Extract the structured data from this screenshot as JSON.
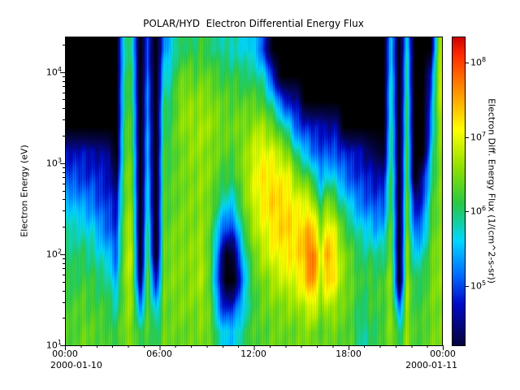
{
  "chart_data": {
    "type": "heatmap",
    "title": "POLAR/HYD  Electron Differential Energy Flux",
    "ylabel": "Electron Energy (eV)",
    "colorbar_label": "Electron Diff. Energy Flux (1/(cm^2-s-sr))",
    "x_tick_labels": [
      "00:00",
      "06:00",
      "12:00",
      "18:00",
      "00:00"
    ],
    "x_dates": [
      "2000-01-10",
      "2000-01-11"
    ],
    "tick_base": "10",
    "y_tick_exponents": [
      1,
      2,
      3,
      4
    ],
    "colorbar_tick_exponents": [
      5,
      6,
      7,
      8
    ],
    "x_hours_range": [
      0,
      24
    ],
    "y_log_energy_range": [
      1.0,
      4.39
    ],
    "colorbar_log_range": [
      4.2,
      8.35
    ],
    "value_units": "log10 differential energy flux",
    "colormap_stops": [
      [
        3.8,
        0,
        0,
        0
      ],
      [
        4.3,
        5,
        5,
        85
      ],
      [
        4.75,
        0,
        10,
        200
      ],
      [
        5.15,
        0,
        110,
        255
      ],
      [
        5.6,
        0,
        215,
        255
      ],
      [
        6.1,
        40,
        200,
        70
      ],
      [
        6.6,
        145,
        225,
        0
      ],
      [
        7.1,
        255,
        255,
        0
      ],
      [
        7.6,
        255,
        150,
        0
      ],
      [
        8.1,
        255,
        45,
        0
      ],
      [
        8.35,
        205,
        0,
        0
      ]
    ],
    "grid": {
      "cols": 48,
      "rows": 12,
      "col_bin_hours": 0.5,
      "row_order": "bottom_to_top",
      "values": [
        [
          6.3,
          6.2,
          6.1,
          6.0,
          5.8,
          5.5,
          5.0,
          4.7,
          3.8,
          3.8,
          3.8,
          3.8
        ],
        [
          6.3,
          6.3,
          6.1,
          6.0,
          5.8,
          5.4,
          5.0,
          4.7,
          3.8,
          3.8,
          3.8,
          3.8
        ],
        [
          6.4,
          6.3,
          6.2,
          6.0,
          5.7,
          5.3,
          4.9,
          4.7,
          3.8,
          3.8,
          3.8,
          3.8
        ],
        [
          6.3,
          6.2,
          6.1,
          5.9,
          5.6,
          5.2,
          4.9,
          4.6,
          3.8,
          3.8,
          3.8,
          3.8
        ],
        [
          6.3,
          6.2,
          6.0,
          5.7,
          5.3,
          5.0,
          4.8,
          4.6,
          3.8,
          3.8,
          3.8,
          3.8
        ],
        [
          6.2,
          6.1,
          5.9,
          5.5,
          5.1,
          4.9,
          4.7,
          4.5,
          3.8,
          3.8,
          3.8,
          3.8
        ],
        [
          6.1,
          5.8,
          5.4,
          5.1,
          4.9,
          4.7,
          4.2,
          3.8,
          3.8,
          3.8,
          3.8,
          3.8
        ],
        [
          6.5,
          6.5,
          6.6,
          6.6,
          6.5,
          6.4,
          6.4,
          6.3,
          6.2,
          6.1,
          6.0,
          5.9
        ],
        [
          6.5,
          6.6,
          6.7,
          6.8,
          6.7,
          6.5,
          6.4,
          6.3,
          6.2,
          6.1,
          6.0,
          5.9
        ],
        [
          6.0,
          5.2,
          4.2,
          3.8,
          3.8,
          3.8,
          3.8,
          3.8,
          3.8,
          3.8,
          3.8,
          3.8
        ],
        [
          6.3,
          6.4,
          6.4,
          6.3,
          6.0,
          5.8,
          5.6,
          5.5,
          5.4,
          5.3,
          5.2,
          5.0
        ],
        [
          6.0,
          5.4,
          4.6,
          3.8,
          3.8,
          3.8,
          3.8,
          3.8,
          3.8,
          3.8,
          3.8,
          3.8
        ],
        [
          6.4,
          6.4,
          6.4,
          6.3,
          6.3,
          6.2,
          6.2,
          6.1,
          6.0,
          5.9,
          5.6,
          5.2
        ],
        [
          6.4,
          6.4,
          6.5,
          6.5,
          6.4,
          6.3,
          6.3,
          6.2,
          6.2,
          6.0,
          5.9,
          5.6
        ],
        [
          6.4,
          6.5,
          6.5,
          6.5,
          6.5,
          6.4,
          6.4,
          6.4,
          6.5,
          6.5,
          6.3,
          6.0
        ],
        [
          6.4,
          6.5,
          6.5,
          6.5,
          6.5,
          6.5,
          6.5,
          6.5,
          6.6,
          6.6,
          6.4,
          6.1
        ],
        [
          6.4,
          6.5,
          6.6,
          6.6,
          6.5,
          6.5,
          6.5,
          6.6,
          6.6,
          6.5,
          6.3,
          6.0
        ],
        [
          6.5,
          6.6,
          6.7,
          6.7,
          6.6,
          6.6,
          6.6,
          6.6,
          6.7,
          6.6,
          6.4,
          6.2
        ],
        [
          6.4,
          6.3,
          6.2,
          6.2,
          6.3,
          6.4,
          6.5,
          6.5,
          6.6,
          6.5,
          6.3,
          6.0
        ],
        [
          5.8,
          5.2,
          4.9,
          5.0,
          5.5,
          6.0,
          6.3,
          6.4,
          6.5,
          6.4,
          6.2,
          5.9
        ],
        [
          5.5,
          4.7,
          3.8,
          3.9,
          4.9,
          5.6,
          6.1,
          6.3,
          6.4,
          6.3,
          6.1,
          5.8
        ],
        [
          5.6,
          4.9,
          3.9,
          4.2,
          5.0,
          5.7,
          6.1,
          6.3,
          6.4,
          6.3,
          6.1,
          5.8
        ],
        [
          5.9,
          5.5,
          5.2,
          5.5,
          6.0,
          6.3,
          6.5,
          6.5,
          6.5,
          6.3,
          6.0,
          5.7
        ],
        [
          6.2,
          6.0,
          6.0,
          6.2,
          6.5,
          6.7,
          6.8,
          6.7,
          6.5,
          6.3,
          6.0,
          5.6
        ],
        [
          6.3,
          6.3,
          6.4,
          6.6,
          6.8,
          7.0,
          7.1,
          7.0,
          6.7,
          6.3,
          5.9,
          5.4
        ],
        [
          6.3,
          6.4,
          6.5,
          6.8,
          7.0,
          7.2,
          7.2,
          7.0,
          6.6,
          6.1,
          5.5,
          4.7
        ],
        [
          6.4,
          6.5,
          6.7,
          7.0,
          7.2,
          7.3,
          7.2,
          6.9,
          6.4,
          5.6,
          4.7,
          3.8
        ],
        [
          6.4,
          6.5,
          6.8,
          7.1,
          7.3,
          7.3,
          7.1,
          6.7,
          6.0,
          5.0,
          3.8,
          3.8
        ],
        [
          6.4,
          6.6,
          6.9,
          7.2,
          7.3,
          7.2,
          7.0,
          6.5,
          5.6,
          4.7,
          3.8,
          3.8
        ],
        [
          6.4,
          6.6,
          7.0,
          7.2,
          7.2,
          7.0,
          6.5,
          5.8,
          5.0,
          4.6,
          3.8,
          3.8
        ],
        [
          6.5,
          6.8,
          7.3,
          7.5,
          7.4,
          7.0,
          6.4,
          5.5,
          4.9,
          3.8,
          3.8,
          3.8
        ],
        [
          6.5,
          7.0,
          7.7,
          7.9,
          7.4,
          6.8,
          6.0,
          5.2,
          4.7,
          3.8,
          3.8,
          3.8
        ],
        [
          6.3,
          6.5,
          6.8,
          6.9,
          6.6,
          6.0,
          5.4,
          5.0,
          4.7,
          3.8,
          3.8,
          3.8
        ],
        [
          6.4,
          6.8,
          7.4,
          7.6,
          7.2,
          6.6,
          5.8,
          5.0,
          4.6,
          3.8,
          3.8,
          3.8
        ],
        [
          6.4,
          6.6,
          7.0,
          7.0,
          6.8,
          6.2,
          5.5,
          5.0,
          4.6,
          3.8,
          3.8,
          3.8
        ],
        [
          6.3,
          6.4,
          6.5,
          6.5,
          6.2,
          5.8,
          5.2,
          4.9,
          3.8,
          3.8,
          3.8,
          3.8
        ],
        [
          6.3,
          6.3,
          6.4,
          6.3,
          6.0,
          5.5,
          5.0,
          4.7,
          3.8,
          3.8,
          3.8,
          3.8
        ],
        [
          5.8,
          6.0,
          6.1,
          6.0,
          5.7,
          5.2,
          4.9,
          4.7,
          3.8,
          3.8,
          3.8,
          3.8
        ],
        [
          6.0,
          6.1,
          6.2,
          6.0,
          5.6,
          5.1,
          4.8,
          4.4,
          3.8,
          3.8,
          3.8,
          3.8
        ],
        [
          6.1,
          6.2,
          6.2,
          5.9,
          5.4,
          5.0,
          4.7,
          4.2,
          3.8,
          3.8,
          3.8,
          3.8
        ],
        [
          6.2,
          6.2,
          6.2,
          5.9,
          5.5,
          5.0,
          4.7,
          4.0,
          3.8,
          3.8,
          3.8,
          3.8
        ],
        [
          6.6,
          6.6,
          6.6,
          6.5,
          6.4,
          6.3,
          6.2,
          6.1,
          6.0,
          5.9,
          5.8,
          5.6
        ],
        [
          6.0,
          5.0,
          3.8,
          3.8,
          3.8,
          3.8,
          3.8,
          3.8,
          3.8,
          3.8,
          3.8,
          3.8
        ],
        [
          6.6,
          6.7,
          6.7,
          6.6,
          6.5,
          6.4,
          6.3,
          6.2,
          6.1,
          6.0,
          5.9,
          5.7
        ],
        [
          6.2,
          6.1,
          6.0,
          5.6,
          5.0,
          4.6,
          3.8,
          3.8,
          3.8,
          3.8,
          3.8,
          3.8
        ],
        [
          6.3,
          6.2,
          6.1,
          5.8,
          5.3,
          4.9,
          4.6,
          3.8,
          3.8,
          3.8,
          3.8,
          3.8
        ],
        [
          6.4,
          6.4,
          6.4,
          6.3,
          6.2,
          6.0,
          5.8,
          5.5,
          5.2,
          5.0,
          4.7,
          3.8
        ],
        [
          6.5,
          6.5,
          6.6,
          6.6,
          6.5,
          6.5,
          6.5,
          6.5,
          6.6,
          6.7,
          6.8,
          6.6
        ]
      ]
    }
  }
}
